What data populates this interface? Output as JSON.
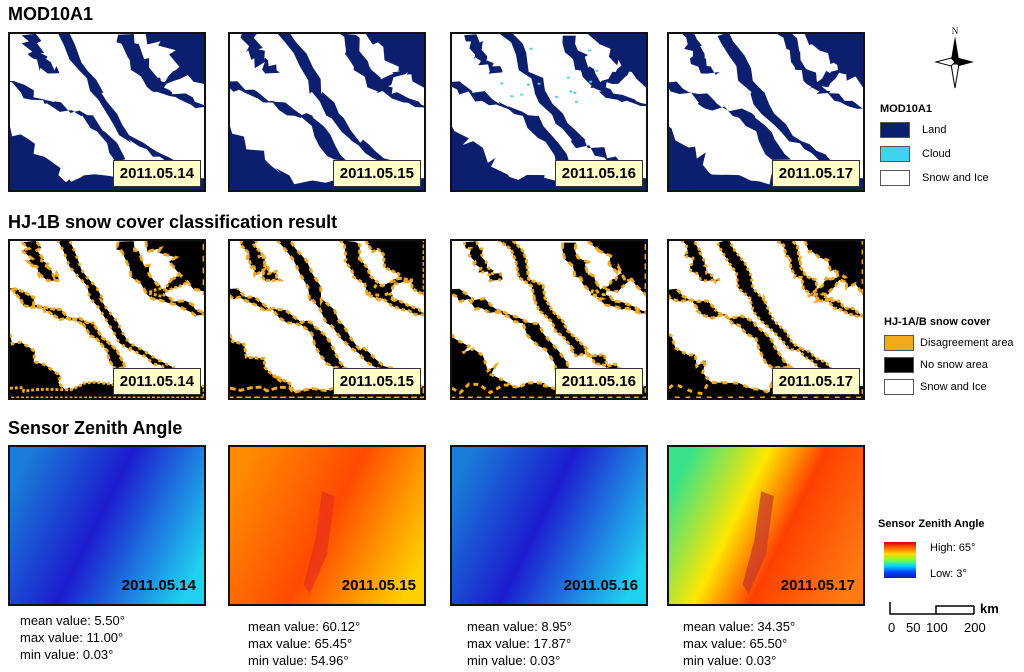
{
  "sections": {
    "mod": {
      "title": "MOD10A1"
    },
    "hj": {
      "title": "HJ-1B snow cover classification result"
    },
    "sza": {
      "title": "Sensor Zenith Angle"
    }
  },
  "dates": [
    "2011.05.14",
    "2011.05.15",
    "2011.05.16",
    "2011.05.17"
  ],
  "legends": {
    "mod": {
      "title": "MOD10A1",
      "items": [
        {
          "label": "Land",
          "color": "#0b1f6e"
        },
        {
          "label": "Cloud",
          "color": "#3fd3f2"
        },
        {
          "label": "Snow and Ice",
          "color": "#ffffff"
        }
      ]
    },
    "hj": {
      "title": "HJ-1A/B snow cover",
      "items": [
        {
          "label": "Disagreement area",
          "color": "#f2a91c"
        },
        {
          "label": "No snow area",
          "color": "#000000"
        },
        {
          "label": "Snow and Ice",
          "color": "#ffffff"
        }
      ]
    },
    "sza": {
      "title": "Sensor Zenith Angle",
      "high": "High: 65°",
      "low": "Low: 3°"
    }
  },
  "stats": [
    {
      "mean": "mean value: 5.50°",
      "max": "max value: 11.00°",
      "min": "min value: 0.03°"
    },
    {
      "mean": "mean value: 60.12°",
      "max": "max value: 65.45°",
      "min": "min value: 54.96°"
    },
    {
      "mean": "mean value: 8.95°",
      "max": "max value: 17.87°",
      "min": "min value: 0.03°"
    },
    {
      "mean": "mean value: 34.35°",
      "max": "max value: 65.50°",
      "min": "min value: 0.03°"
    }
  ],
  "scale": {
    "unit": "km",
    "ticks": [
      "0",
      "50",
      "100",
      "200"
    ]
  },
  "north": {
    "label": "N"
  }
}
